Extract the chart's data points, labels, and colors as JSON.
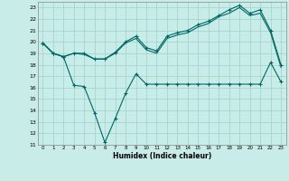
{
  "xlabel": "Humidex (Indice chaleur)",
  "ylabel": "",
  "bg_color": "#c8ede8",
  "grid_color": "#a0d0cc",
  "line_color": "#006666",
  "xlim": [
    -0.5,
    23.5
  ],
  "ylim": [
    11,
    23.5
  ],
  "yticks": [
    11,
    12,
    13,
    14,
    15,
    16,
    17,
    18,
    19,
    20,
    21,
    22,
    23
  ],
  "xticks": [
    0,
    1,
    2,
    3,
    4,
    5,
    6,
    7,
    8,
    9,
    10,
    11,
    12,
    13,
    14,
    15,
    16,
    17,
    18,
    19,
    20,
    21,
    22,
    23
  ],
  "line1_x": [
    0,
    1,
    2,
    3,
    4,
    5,
    6,
    7,
    8,
    9,
    10,
    11,
    12,
    13,
    14,
    15,
    16,
    17,
    18,
    19,
    20,
    21,
    22,
    23
  ],
  "line1_y": [
    19.9,
    19.0,
    18.7,
    19.0,
    19.0,
    18.5,
    18.5,
    19.1,
    20.0,
    20.5,
    19.5,
    19.2,
    20.5,
    20.8,
    21.0,
    21.5,
    21.8,
    22.3,
    22.8,
    23.2,
    22.5,
    22.8,
    21.0,
    18.0
  ],
  "line2_x": [
    0,
    1,
    2,
    3,
    4,
    5,
    6,
    7,
    8,
    9,
    10,
    11,
    12,
    13,
    14,
    15,
    16,
    17,
    18,
    19,
    20,
    21,
    22,
    23
  ],
  "line2_y": [
    19.9,
    19.0,
    18.7,
    19.0,
    18.9,
    18.5,
    18.5,
    19.0,
    19.9,
    20.3,
    19.3,
    19.0,
    20.3,
    20.6,
    20.8,
    21.3,
    21.6,
    22.2,
    22.5,
    23.0,
    22.3,
    22.5,
    20.8,
    17.8
  ],
  "line3_x": [
    0,
    1,
    2,
    3,
    4,
    5,
    6,
    7,
    8,
    9,
    10,
    11,
    12,
    13,
    14,
    15,
    16,
    17,
    18,
    19,
    20,
    21,
    22,
    23
  ],
  "line3_y": [
    19.9,
    19.0,
    18.7,
    16.2,
    16.1,
    13.8,
    11.2,
    13.3,
    15.5,
    17.2,
    16.3,
    16.3,
    16.3,
    16.3,
    16.3,
    16.3,
    16.3,
    16.3,
    16.3,
    16.3,
    16.3,
    16.3,
    18.2,
    16.5
  ]
}
